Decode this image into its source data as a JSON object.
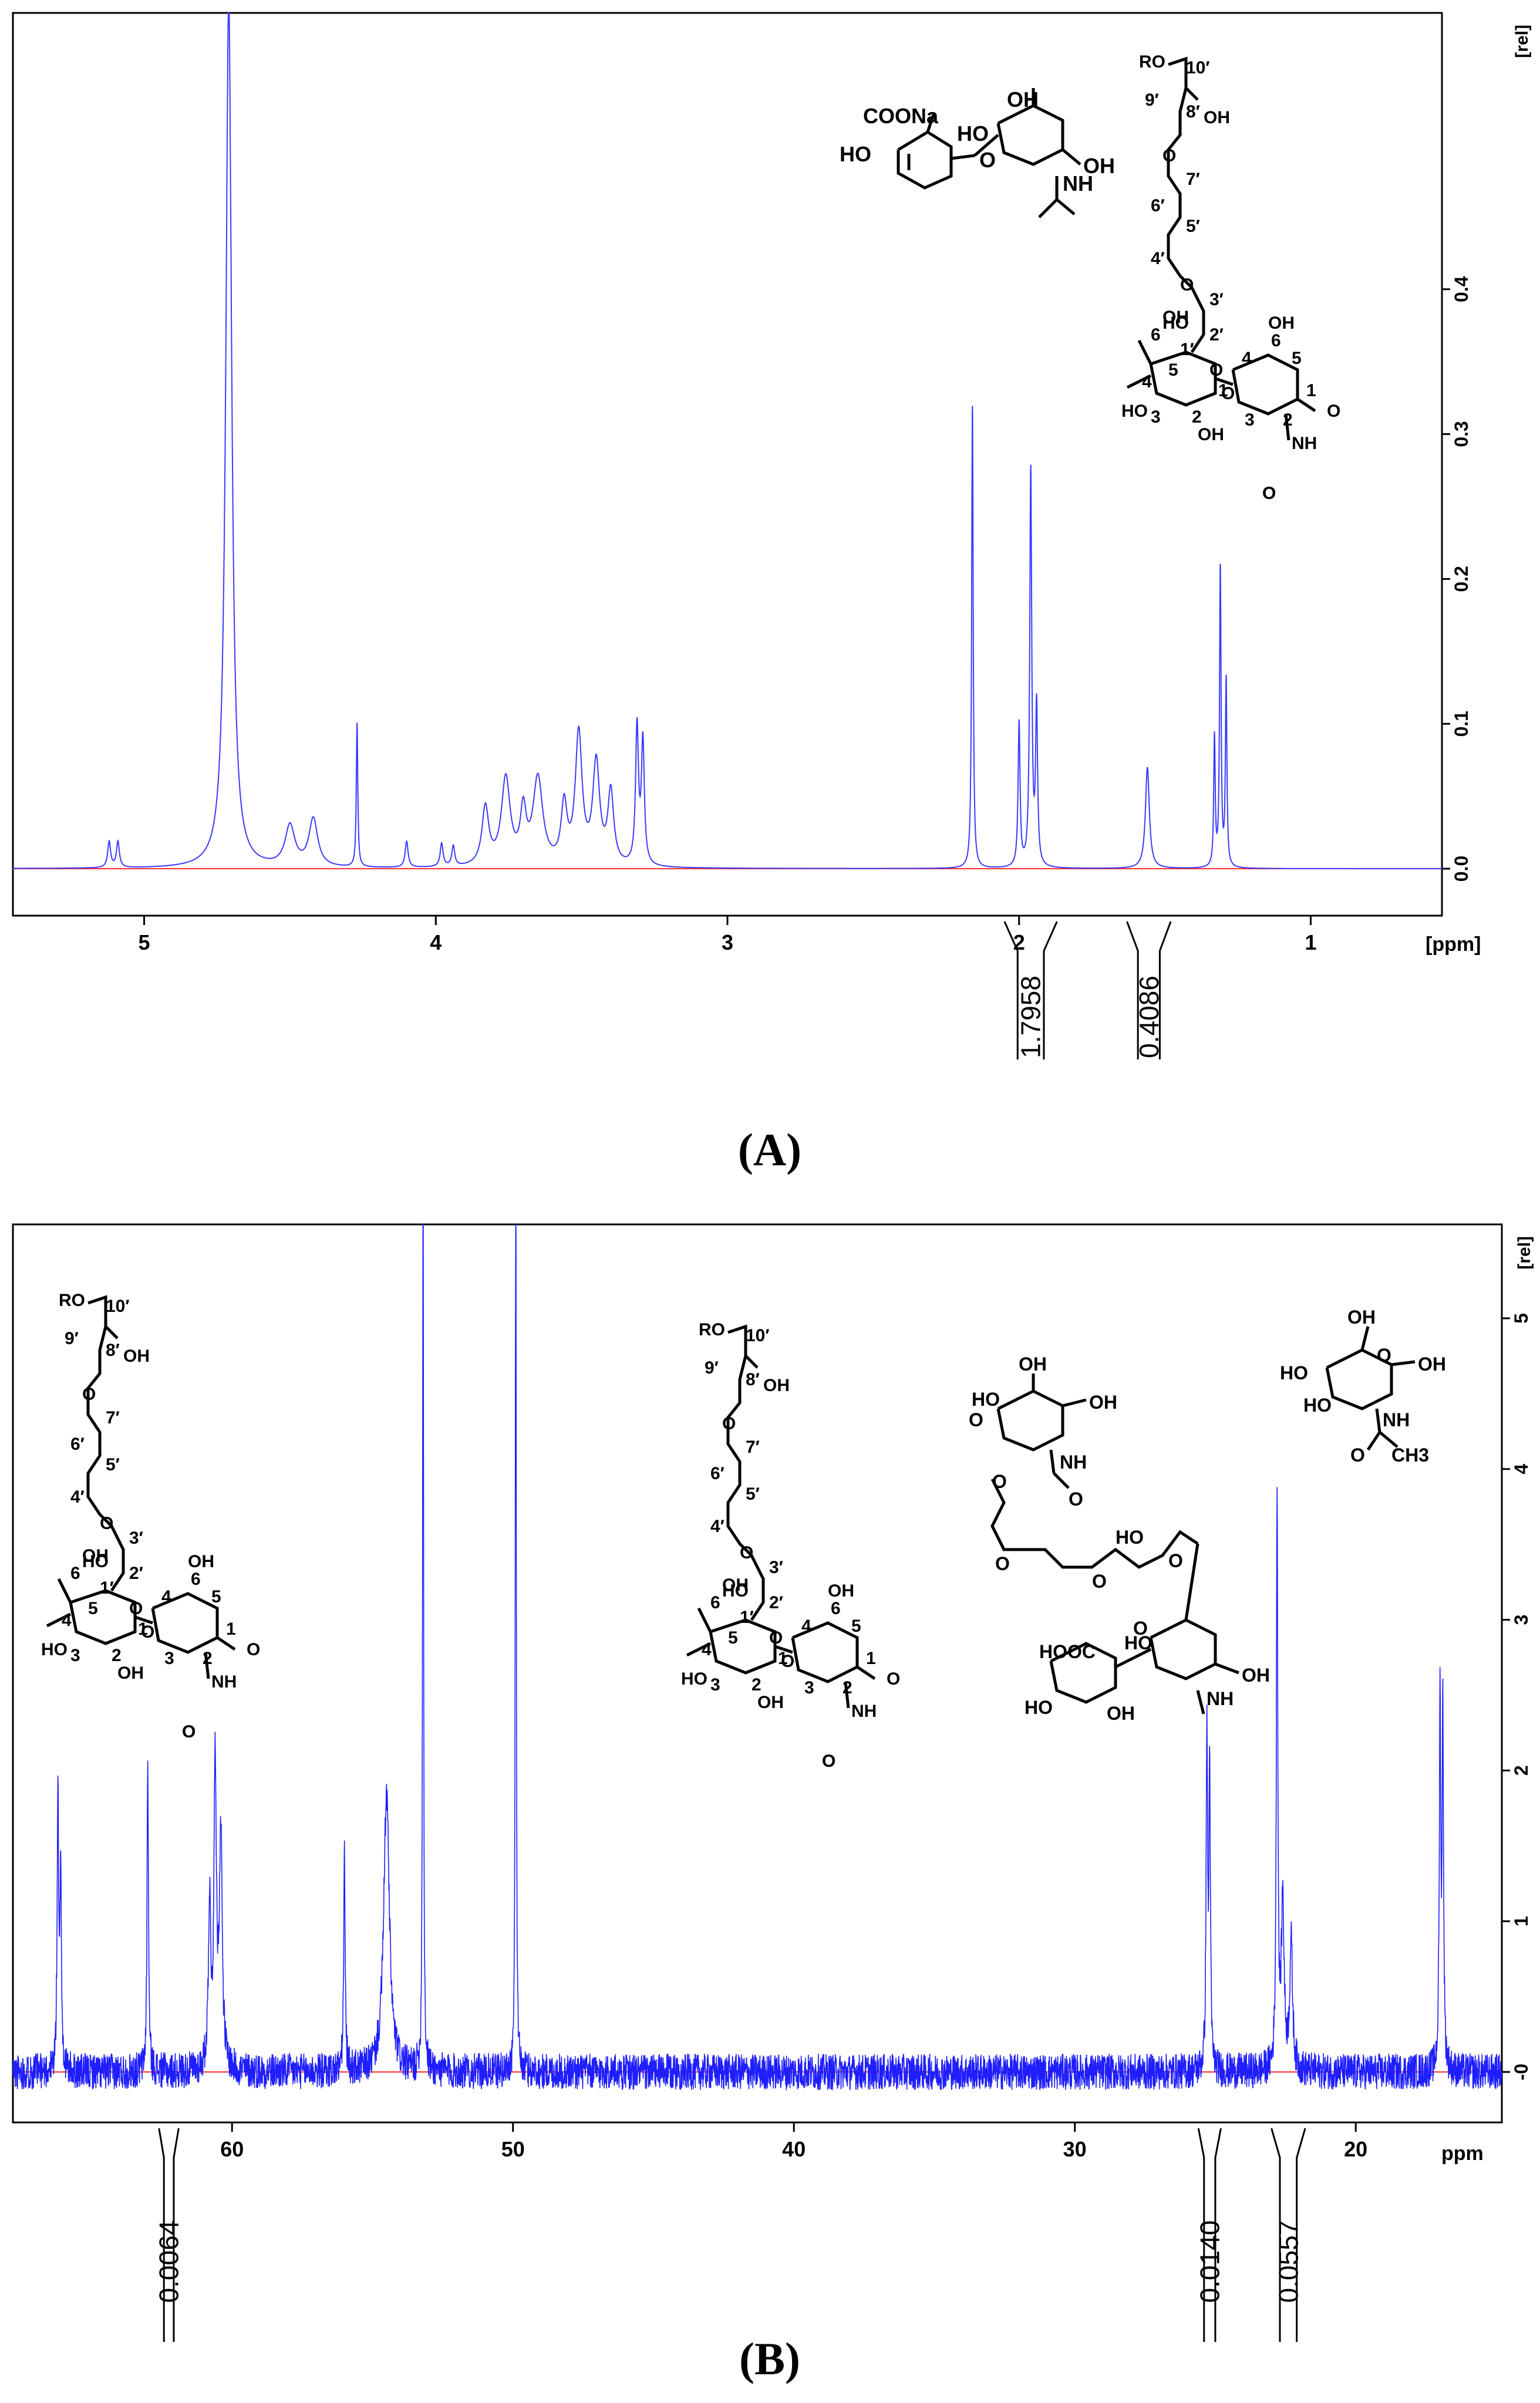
{
  "chart_data": [
    {
      "panel": "A",
      "caption": "(A)",
      "type": "line",
      "nucleus_axis": "ppm",
      "xlabel": "[ppm]",
      "ylabel": "[rel]",
      "xlim": [
        5.45,
        0.55
      ],
      "ylim": [
        -0.015,
        0.47
      ],
      "x_ticks": [
        5,
        4,
        3,
        2,
        1
      ],
      "y_ticks": [
        0.0,
        0.1,
        0.2,
        0.3,
        0.4
      ],
      "y_tick_labels": [
        "0.0",
        "0.1",
        "0.2",
        "0.3",
        "0.4"
      ],
      "series_color": "#3a3aff",
      "baseline_color": "#ff3030",
      "grid": false,
      "peaks": [
        {
          "x": 5.12,
          "y": 0.018,
          "w": 0.006
        },
        {
          "x": 5.09,
          "y": 0.018,
          "w": 0.006
        },
        {
          "x": 4.71,
          "y": 0.6,
          "w": 0.012
        },
        {
          "x": 4.5,
          "y": 0.028,
          "w": 0.02
        },
        {
          "x": 4.42,
          "y": 0.033,
          "w": 0.018
        },
        {
          "x": 4.27,
          "y": 0.1,
          "w": 0.003
        },
        {
          "x": 4.1,
          "y": 0.018,
          "w": 0.006
        },
        {
          "x": 3.98,
          "y": 0.016,
          "w": 0.006
        },
        {
          "x": 3.94,
          "y": 0.014,
          "w": 0.006
        },
        {
          "x": 3.83,
          "y": 0.04,
          "w": 0.014
        },
        {
          "x": 3.76,
          "y": 0.06,
          "w": 0.018
        },
        {
          "x": 3.7,
          "y": 0.035,
          "w": 0.012
        },
        {
          "x": 3.65,
          "y": 0.06,
          "w": 0.02
        },
        {
          "x": 3.56,
          "y": 0.04,
          "w": 0.012
        },
        {
          "x": 3.51,
          "y": 0.09,
          "w": 0.014
        },
        {
          "x": 3.45,
          "y": 0.07,
          "w": 0.014
        },
        {
          "x": 3.4,
          "y": 0.05,
          "w": 0.012
        },
        {
          "x": 3.31,
          "y": 0.095,
          "w": 0.006
        },
        {
          "x": 3.29,
          "y": 0.085,
          "w": 0.006
        },
        {
          "x": 2.16,
          "y": 0.325,
          "w": 0.003
        },
        {
          "x": 2.0,
          "y": 0.1,
          "w": 0.004
        },
        {
          "x": 1.96,
          "y": 0.275,
          "w": 0.004
        },
        {
          "x": 1.94,
          "y": 0.11,
          "w": 0.004
        },
        {
          "x": 1.56,
          "y": 0.07,
          "w": 0.008
        },
        {
          "x": 1.33,
          "y": 0.09,
          "w": 0.003
        },
        {
          "x": 1.31,
          "y": 0.21,
          "w": 0.003
        },
        {
          "x": 1.29,
          "y": 0.13,
          "w": 0.003
        }
      ],
      "integrals": [
        {
          "from": 2.05,
          "to": 1.87,
          "label": "1.7958"
        },
        {
          "from": 1.63,
          "to": 1.48,
          "label": "0.4086"
        }
      ],
      "structure_labels": {
        "disaccharide": {
          "coona": "COONa",
          "ho1": "HO",
          "ho2": "HO",
          "ho3": "O",
          "oh1": "OH",
          "oh2": "OH",
          "nh": "NH"
        },
        "polymer": {
          "ro": "RO",
          "c10": "10′",
          "c9": "9′",
          "c8": "8′",
          "oh8": "OH",
          "o1": "O",
          "c7": "7′",
          "c6": "6′",
          "c5": "5′",
          "c4": "4′",
          "o2": "O",
          "c3": "3′",
          "ho3": "HO",
          "c2": "2′",
          "c1p": "1′",
          "n6a": "6",
          "oha": "OH",
          "n4a": "4",
          "n5a": "5",
          "hoa": "HO",
          "n3a": "3",
          "n2a": "2",
          "n1a": "1",
          "oh2a": "OH",
          "ringO1": "O",
          "ringO2": "O",
          "n4b": "4",
          "n6b": "6",
          "ohb": "OH",
          "n5b": "5",
          "n3b": "3",
          "n2b": "2",
          "n1b": "1",
          "nhb": "NH",
          "oterm": "O",
          "od1": "O",
          "od2": "O"
        }
      }
    },
    {
      "panel": "B",
      "caption": "(B)",
      "type": "line",
      "nucleus_axis": "ppm",
      "xlabel": "ppm",
      "ylabel": "[rel]",
      "xlim": [
        67.8,
        14.8
      ],
      "ylim": [
        -0.45,
        5.6
      ],
      "x_ticks": [
        60,
        50,
        40,
        30,
        20
      ],
      "y_ticks": [
        0,
        1,
        2,
        3,
        4,
        5
      ],
      "y_tick_labels": [
        "-0",
        "1",
        "2",
        "3",
        "4",
        "5"
      ],
      "series_color": "#1e1eff",
      "baseline_color": "#ff3030",
      "grid": false,
      "noise_amplitude": 0.12,
      "peaks": [
        {
          "x": 66.2,
          "y": 1.85,
          "w": 0.03
        },
        {
          "x": 66.1,
          "y": 1.4,
          "w": 0.03
        },
        {
          "x": 63.0,
          "y": 2.05,
          "w": 0.03
        },
        {
          "x": 60.8,
          "y": 1.1,
          "w": 0.05
        },
        {
          "x": 60.6,
          "y": 2.05,
          "w": 0.05
        },
        {
          "x": 60.4,
          "y": 1.6,
          "w": 0.06
        },
        {
          "x": 56.0,
          "y": 1.45,
          "w": 0.03
        },
        {
          "x": 54.5,
          "y": 1.85,
          "w": 0.12
        },
        {
          "x": 53.2,
          "y": 6.5,
          "w": 0.02
        },
        {
          "x": 49.9,
          "y": 6.5,
          "w": 0.02
        },
        {
          "x": 25.3,
          "y": 2.25,
          "w": 0.03
        },
        {
          "x": 25.2,
          "y": 2.0,
          "w": 0.03
        },
        {
          "x": 22.8,
          "y": 3.9,
          "w": 0.03
        },
        {
          "x": 22.6,
          "y": 1.1,
          "w": 0.06
        },
        {
          "x": 22.3,
          "y": 0.85,
          "w": 0.06
        },
        {
          "x": 17.0,
          "y": 2.45,
          "w": 0.03
        },
        {
          "x": 16.9,
          "y": 2.35,
          "w": 0.03
        }
      ],
      "integrals": [
        {
          "from": 62.6,
          "to": 61.9,
          "label": "0.0064"
        },
        {
          "from": 25.6,
          "to": 24.8,
          "label": "0.0140"
        },
        {
          "from": 23.0,
          "to": 21.8,
          "label": "0.0557"
        }
      ],
      "structure_labels": {
        "polymer": {
          "ro": "RO",
          "c10": "10′",
          "c9": "9′",
          "c8": "8′",
          "oh8": "OH",
          "o1": "O",
          "c7": "7′",
          "c6": "6′",
          "c5": "5′",
          "c4": "4′",
          "o2": "O",
          "c3": "3′",
          "ho3": "HO",
          "c2": "2′",
          "c1p": "1′",
          "n6a": "6",
          "oha": "OH",
          "n4a": "4",
          "n5a": "5",
          "hoa": "HO",
          "n3a": "3",
          "n2a": "2",
          "n1a": "1",
          "oh2a": "OH",
          "ringO1": "O",
          "ringO2": "O",
          "n4b": "4",
          "n6b": "6",
          "ohb": "OH",
          "n5b": "5",
          "n3b": "3",
          "n2b": "2",
          "n1b": "1",
          "nhb": "NH",
          "oterm": "O",
          "od1": "O",
          "od2": "O"
        },
        "crosslinked": {
          "oh1": "OH",
          "oh2": "OH",
          "o_top": "O",
          "ho_l": "HO",
          "o_l": "O",
          "nh1": "NH",
          "o_a": "O",
          "o_b": "O",
          "o_c": "O",
          "ho_m": "HO",
          "o_d": "O",
          "hooc": "HOOC",
          "ho_r": "HO",
          "o_e": "O",
          "ho_b": "HO",
          "oh_b": "OH",
          "nh2": "NH",
          "oh_c": "OH"
        },
        "glcnac": {
          "oh_top": "OH",
          "ho_l": "HO",
          "ho_m": "HO",
          "o_ring": "O",
          "oh_r": "OH",
          "nh": "NH",
          "o_co": "O",
          "ch3": "CH3"
        }
      }
    }
  ]
}
